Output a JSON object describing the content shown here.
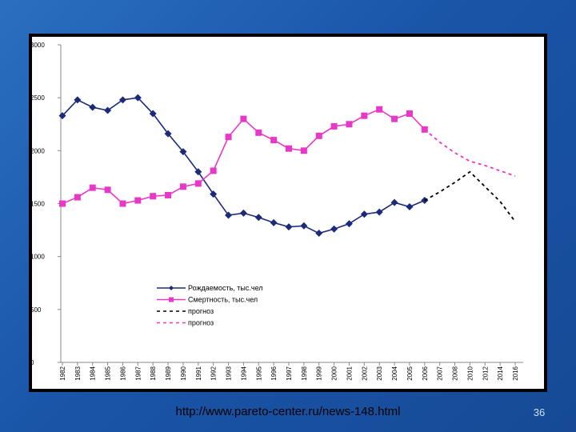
{
  "slide": {
    "footer_url": "http://www.pareto-center.ru/news-148.html",
    "slide_number": "36",
    "background": "#1a55a8"
  },
  "chart_data": {
    "type": "line",
    "title": "",
    "xlabel": "",
    "ylabel": "",
    "ylim": [
      0,
      3000
    ],
    "yticks": [
      0,
      500,
      1000,
      1500,
      2000,
      2500,
      3000
    ],
    "x": [
      "1982",
      "1983",
      "1984",
      "1985",
      "1986",
      "1987",
      "1988",
      "1989",
      "1990",
      "1991",
      "1992",
      "1993",
      "1994",
      "1995",
      "1996",
      "1997",
      "1998",
      "1999",
      "2000",
      "2001",
      "2002",
      "2003",
      "2004",
      "2005",
      "2006",
      "2007",
      "2008",
      "2010",
      "2012",
      "2014",
      "2016"
    ],
    "x_tick_labels": [
      "1982",
      "1983",
      "1984",
      "1985",
      "1986",
      "1987",
      "1988",
      "1989",
      "1990",
      "1991",
      "1992",
      "1993",
      "1994",
      "1995",
      "1996",
      "1997",
      "1998",
      "1999",
      "2000",
      "2001",
      "2002",
      "2003",
      "2004",
      "2005",
      "2006",
      "2007",
      "2008",
      "2010",
      "2012",
      "2014",
      "2016"
    ],
    "grid": false,
    "legend_position": "bottom-center",
    "series": [
      {
        "name": "Рождаемость, тыс.чел",
        "color": "#1c2a7a",
        "style": "solid",
        "marker": "diamond",
        "points": [
          [
            0,
            2330
          ],
          [
            1,
            2480
          ],
          [
            2,
            2410
          ],
          [
            3,
            2380
          ],
          [
            4,
            2480
          ],
          [
            5,
            2500
          ],
          [
            6,
            2350
          ],
          [
            7,
            2160
          ],
          [
            8,
            1990
          ],
          [
            9,
            1800
          ],
          [
            10,
            1590
          ],
          [
            11,
            1390
          ],
          [
            12,
            1410
          ],
          [
            13,
            1370
          ],
          [
            14,
            1320
          ],
          [
            15,
            1280
          ],
          [
            16,
            1290
          ],
          [
            17,
            1220
          ],
          [
            18,
            1260
          ],
          [
            19,
            1310
          ],
          [
            20,
            1400
          ],
          [
            21,
            1420
          ],
          [
            22,
            1510
          ],
          [
            23,
            1470
          ],
          [
            24,
            1530
          ]
        ]
      },
      {
        "name": "Смертность, тыс.чел",
        "color": "#e838c8",
        "style": "solid",
        "marker": "square",
        "points": [
          [
            0,
            1500
          ],
          [
            1,
            1560
          ],
          [
            2,
            1650
          ],
          [
            3,
            1630
          ],
          [
            4,
            1500
          ],
          [
            5,
            1530
          ],
          [
            6,
            1570
          ],
          [
            7,
            1580
          ],
          [
            8,
            1660
          ],
          [
            9,
            1690
          ],
          [
            10,
            1810
          ],
          [
            11,
            2130
          ],
          [
            12,
            2300
          ],
          [
            13,
            2170
          ],
          [
            14,
            2100
          ],
          [
            15,
            2020
          ],
          [
            16,
            2000
          ],
          [
            17,
            2140
          ],
          [
            18,
            2230
          ],
          [
            19,
            2250
          ],
          [
            20,
            2330
          ],
          [
            21,
            2390
          ],
          [
            22,
            2300
          ],
          [
            23,
            2350
          ],
          [
            24,
            2200
          ]
        ]
      },
      {
        "name": "прогноз",
        "color": "#000000",
        "style": "dashed",
        "marker": "none",
        "points": [
          [
            24,
            1530
          ],
          [
            25,
            1610
          ],
          [
            26,
            1700
          ],
          [
            27,
            1800
          ],
          [
            28,
            1660
          ],
          [
            29,
            1520
          ],
          [
            30,
            1330
          ]
        ]
      },
      {
        "name": "прогноз",
        "color": "#e838c8",
        "style": "dashed",
        "marker": "none",
        "points": [
          [
            24,
            2200
          ],
          [
            25,
            2080
          ],
          [
            26,
            1980
          ],
          [
            27,
            1900
          ],
          [
            28,
            1860
          ],
          [
            29,
            1810
          ],
          [
            30,
            1760
          ]
        ]
      }
    ]
  }
}
